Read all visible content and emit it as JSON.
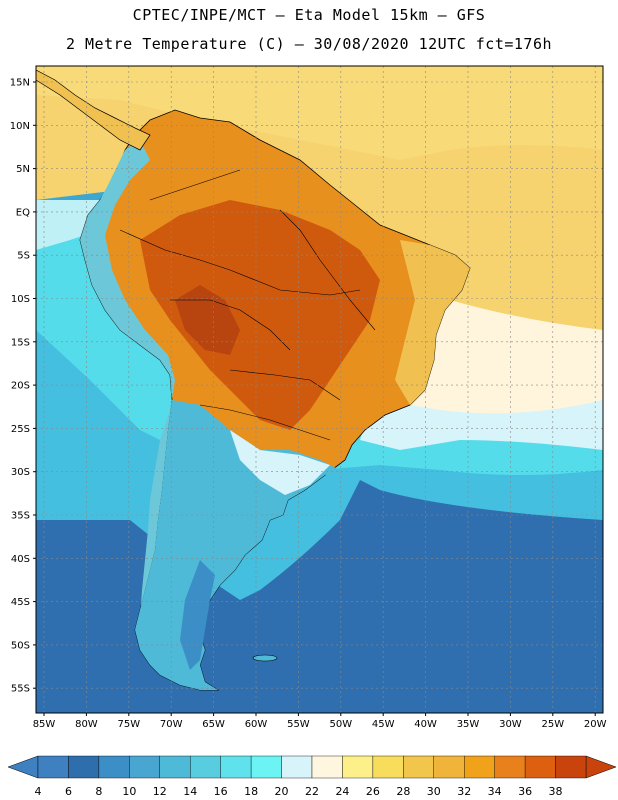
{
  "header": {
    "line1": "CPTEC/INPE/MCT –  Eta Model 15km – GFS",
    "line2": "2 Metre Temperature (C) – 30/08/2020 12UTC fct=176h"
  },
  "map": {
    "lat_labels": [
      "15N",
      "10N",
      "5N",
      "EQ",
      "5S",
      "10S",
      "15S",
      "20S",
      "25S",
      "30S",
      "35S",
      "40S",
      "45S",
      "50S",
      "55S"
    ],
    "lon_labels": [
      "85W",
      "80W",
      "75W",
      "70W",
      "65W",
      "60W",
      "55W",
      "50W",
      "45W",
      "40W",
      "35W",
      "30W",
      "25W",
      "20W"
    ],
    "colors": {
      "ocean_north": "#f6d36e",
      "ocean_transition": "#fff5dc",
      "ocean_light_blue": "#55dcea",
      "ocean_mid_blue": "#3aa8d2",
      "ocean_dark_blue": "#2f6fb0",
      "land_hot": "#e8901e",
      "land_very_hot": "#cf5a0e",
      "land_mild": "#f0c050",
      "andes_cold": "#6cc8d8"
    }
  },
  "colorbar": {
    "labels": [
      "4",
      "6",
      "8",
      "10",
      "12",
      "14",
      "16",
      "18",
      "20",
      "22",
      "24",
      "26",
      "28",
      "30",
      "32",
      "34",
      "36",
      "38"
    ],
    "colors": [
      "#3e80c0",
      "#2e6eac",
      "#3b8ec6",
      "#48a6d0",
      "#4fbad8",
      "#58cde0",
      "#5fe2ec",
      "#6cf4f4",
      "#d6f4fa",
      "#fff6e0",
      "#fdf08a",
      "#f8dc5c",
      "#f2c64a",
      "#f0b43a",
      "#f0a21a",
      "#e8801c",
      "#dc6010",
      "#c8440c"
    ],
    "left_arrow_color": "#3e80c0",
    "right_arrow_color": "#c8440c"
  }
}
